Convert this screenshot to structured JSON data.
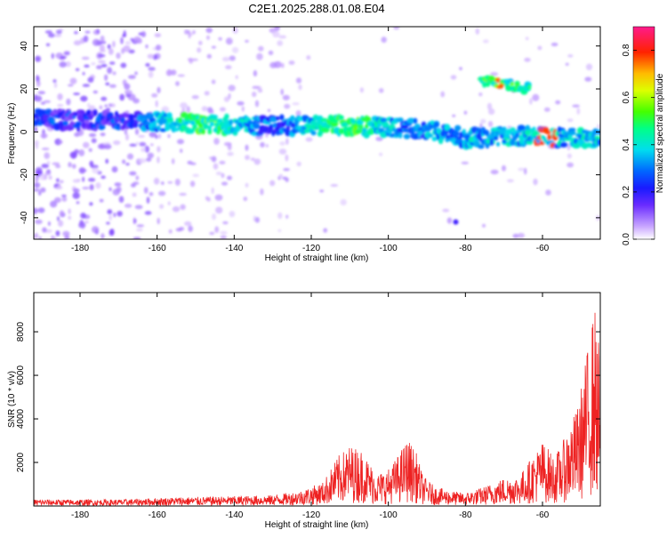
{
  "title": "C2E1.2025.288.01.08.E04",
  "colors": {
    "signal_line": "#ee2222",
    "colormap": [
      "#ffffff",
      "#c9a6ff",
      "#8b4fff",
      "#3a1cff",
      "#0055ff",
      "#00ccff",
      "#00ff99",
      "#66ff00",
      "#ffff00",
      "#ff7700",
      "#ff0000",
      "#ff1a8c"
    ]
  },
  "chart_data": [
    {
      "type": "heatmap",
      "title": "C2E1.2025.288.01.08.E04",
      "xlabel": "Height of straight line (km)",
      "ylabel": "Frequency (Hz)",
      "xlim": [
        -192,
        -45
      ],
      "ylim": [
        -50,
        49
      ],
      "xticks": [
        -180,
        -160,
        -140,
        -120,
        -100,
        -80,
        -60
      ],
      "yticks": [
        -40,
        -20,
        0,
        20,
        40
      ],
      "main_band": [
        {
          "x": -192,
          "y": 6
        },
        {
          "x": -165,
          "y": 5
        },
        {
          "x": -150,
          "y": 4
        },
        {
          "x": -140,
          "y": 3
        },
        {
          "x": -130,
          "y": 3
        },
        {
          "x": -120,
          "y": 3
        },
        {
          "x": -110,
          "y": 3
        },
        {
          "x": -100,
          "y": 2
        },
        {
          "x": -90,
          "y": 1
        },
        {
          "x": -80,
          "y": -3
        },
        {
          "x": -75,
          "y": -3
        },
        {
          "x": -70,
          "y": -2
        },
        {
          "x": -60,
          "y": -2
        },
        {
          "x": -55,
          "y": -3
        },
        {
          "x": -45,
          "y": -3
        }
      ],
      "secondary_band": {
        "x_start": -76,
        "x_end": -63,
        "y_start": 24,
        "y_end": 20
      },
      "colorbar": {
        "label": "Normalized spectral amplitude",
        "range": [
          0.0,
          0.9
        ],
        "ticks": [
          "0.0",
          "0.2",
          "0.4",
          "0.6",
          "0.8"
        ],
        "tick_values": [
          0.0,
          0.2,
          0.4,
          0.6,
          0.8
        ]
      }
    },
    {
      "type": "line",
      "xlabel": "Height of straight line (km)",
      "ylabel": "SNR (10 * v/v)",
      "xlim": [
        -192,
        -45
      ],
      "ylim": [
        0,
        9800
      ],
      "xticks": [
        -180,
        -160,
        -140,
        -120,
        -100,
        -80,
        -60
      ],
      "yticks": [
        2000,
        4000,
        6000,
        8000
      ],
      "series": [
        {
          "name": "SNR",
          "envelope": [
            {
              "x": -192,
              "y": 300
            },
            {
              "x": -170,
              "y": 300
            },
            {
              "x": -155,
              "y": 400
            },
            {
              "x": -140,
              "y": 450
            },
            {
              "x": -130,
              "y": 500
            },
            {
              "x": -123,
              "y": 700
            },
            {
              "x": -117,
              "y": 1100
            },
            {
              "x": -115,
              "y": 1700
            },
            {
              "x": -113,
              "y": 2300
            },
            {
              "x": -110,
              "y": 2800
            },
            {
              "x": -107,
              "y": 2600
            },
            {
              "x": -103,
              "y": 1500
            },
            {
              "x": -100,
              "y": 1700
            },
            {
              "x": -98,
              "y": 2200
            },
            {
              "x": -95,
              "y": 3100
            },
            {
              "x": -93,
              "y": 2600
            },
            {
              "x": -91,
              "y": 1400
            },
            {
              "x": -88,
              "y": 900
            },
            {
              "x": -84,
              "y": 700
            },
            {
              "x": -80,
              "y": 600
            },
            {
              "x": -75,
              "y": 900
            },
            {
              "x": -70,
              "y": 1300
            },
            {
              "x": -66,
              "y": 1400
            },
            {
              "x": -63,
              "y": 2200
            },
            {
              "x": -60,
              "y": 3000
            },
            {
              "x": -57,
              "y": 2300
            },
            {
              "x": -55,
              "y": 2800
            },
            {
              "x": -53,
              "y": 3800
            },
            {
              "x": -51,
              "y": 4500
            },
            {
              "x": -49,
              "y": 6500
            },
            {
              "x": -47.5,
              "y": 8200
            },
            {
              "x": -46.5,
              "y": 9300
            },
            {
              "x": -45,
              "y": 7000
            }
          ]
        }
      ]
    }
  ]
}
